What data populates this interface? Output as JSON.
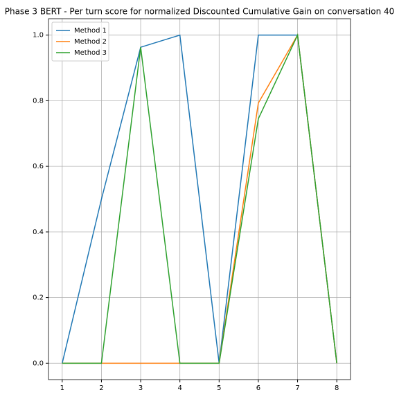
{
  "chart_data": {
    "type": "line",
    "title": "Phase 3 BERT - Per turn score for normalized Discounted Cumulative Gain on conversation 40",
    "x": [
      1,
      2,
      3,
      4,
      5,
      6,
      7,
      8
    ],
    "series": [
      {
        "name": "Method 1",
        "color": "#1f77b4",
        "values": [
          0,
          0.5,
          0.963,
          1.0,
          0,
          1.0,
          1.0,
          0
        ]
      },
      {
        "name": "Method 2",
        "color": "#ff7f0e",
        "values": [
          0,
          0,
          0,
          0,
          0,
          0.793,
          1.0,
          0
        ]
      },
      {
        "name": "Method 3",
        "color": "#2ca02c",
        "values": [
          0,
          0,
          0.963,
          0,
          0,
          0.745,
          1.0,
          0
        ]
      }
    ],
    "xlim": [
      0.65,
      8.35
    ],
    "xticks": [
      1,
      2,
      3,
      4,
      5,
      6,
      7,
      8
    ],
    "ylim": [
      -0.05,
      1.05
    ],
    "yticks": [
      {
        "value": 0,
        "label": "0.0"
      },
      {
        "value": 0.2,
        "label": "0.2"
      },
      {
        "value": 0.4,
        "label": "0.4"
      },
      {
        "value": 0.6,
        "label": "0.6"
      },
      {
        "value": 0.8,
        "label": "0.8"
      },
      {
        "value": 1.0,
        "label": "1.0"
      }
    ],
    "grid": true,
    "legend": "upper-left"
  }
}
